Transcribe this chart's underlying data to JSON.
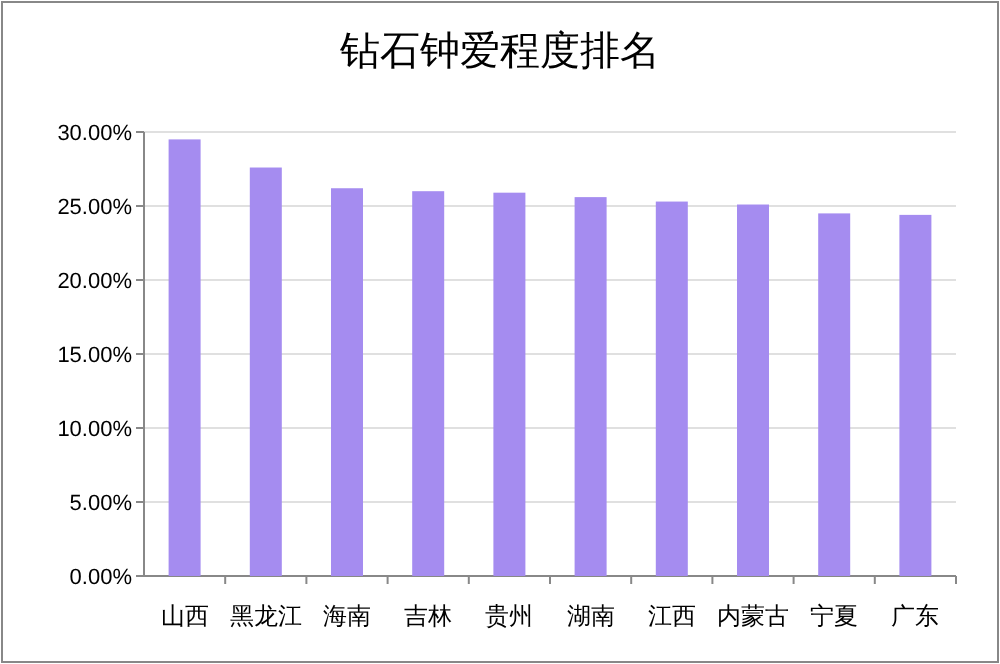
{
  "chart_data": {
    "type": "bar",
    "title": "钻石钟爱程度排名",
    "categories": [
      "山西",
      "黑龙江",
      "海南",
      "吉林",
      "贵州",
      "湖南",
      "江西",
      "内蒙古",
      "宁夏",
      "广东"
    ],
    "values": [
      29.5,
      27.6,
      26.2,
      26.0,
      25.9,
      25.6,
      25.3,
      25.1,
      24.5,
      24.4
    ],
    "color": "#a58cf0",
    "ylim": [
      0,
      30
    ],
    "yticks": [
      {
        "value": 0,
        "label": "0.00%"
      },
      {
        "value": 5,
        "label": "5.00%"
      },
      {
        "value": 10,
        "label": "10.00%"
      },
      {
        "value": 15,
        "label": "15.00%"
      },
      {
        "value": 20,
        "label": "20.00%"
      },
      {
        "value": 25,
        "label": "25.00%"
      },
      {
        "value": 30,
        "label": "30.00%"
      }
    ],
    "grid": "y"
  }
}
